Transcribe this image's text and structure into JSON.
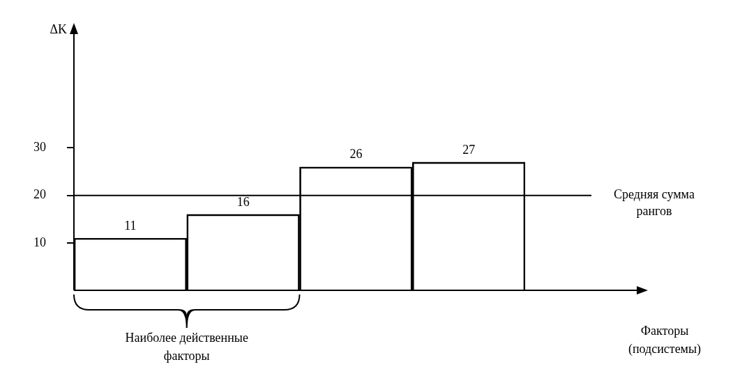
{
  "chart_data": {
    "type": "bar",
    "xlabel": "Факторы (подсистемы)",
    "ylabel": "ΔK",
    "categories": [
      null,
      null,
      null,
      null
    ],
    "values": [
      11,
      16,
      26,
      27
    ],
    "color": "#000000",
    "data_labels": true,
    "ylim": [
      0,
      54
    ],
    "yticks": [
      10,
      20,
      30
    ],
    "grid": false,
    "legend": false,
    "ref_lines": [
      {
        "axis": "y",
        "value": 20,
        "label": "Средняя сумма рангов"
      }
    ],
    "annotations": [
      "Наиболее действенные факторы"
    ]
  }
}
